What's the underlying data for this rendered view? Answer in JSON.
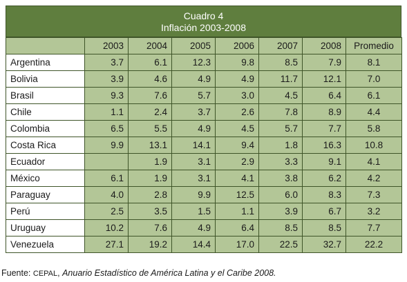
{
  "title": {
    "line1": "Cuadro 4",
    "line2": "Inflación 2003-2008"
  },
  "headers": [
    "2003",
    "2004",
    "2005",
    "2006",
    "2007",
    "2008",
    "Promedio"
  ],
  "rows": [
    {
      "country": "Argentina",
      "values": [
        "3.7",
        "6.1",
        "12.3",
        "9.8",
        "8.5",
        "7.9"
      ],
      "avg": "8.1"
    },
    {
      "country": "Bolivia",
      "values": [
        "3.9",
        "4.6",
        "4.9",
        "4.9",
        "11.7",
        "12.1"
      ],
      "avg": "7.0"
    },
    {
      "country": "Brasil",
      "values": [
        "9.3",
        "7.6",
        "5.7",
        "3.0",
        "4.5",
        "6.4"
      ],
      "avg": "6.1"
    },
    {
      "country": "Chile",
      "values": [
        "1.1",
        "2.4",
        "3.7",
        "2.6",
        "7.8",
        "8.9"
      ],
      "avg": "4.4"
    },
    {
      "country": "Colombia",
      "values": [
        "6.5",
        "5.5",
        "4.9",
        "4.5",
        "5.7",
        "7.7"
      ],
      "avg": "5.8"
    },
    {
      "country": "Costa Rica",
      "values": [
        "9.9",
        "13.1",
        "14.1",
        "9.4",
        "1.8",
        "16.3"
      ],
      "avg": "10.8"
    },
    {
      "country": "Ecuador",
      "values": [
        "",
        "1.9",
        "3.1",
        "2.9",
        "3.3",
        "9.1"
      ],
      "avg": "4.1"
    },
    {
      "country": "México",
      "values": [
        "6.1",
        "1.9",
        "3.1",
        "4.1",
        "3.8",
        "6.2"
      ],
      "avg": "4.2"
    },
    {
      "country": "Paraguay",
      "values": [
        "4.0",
        "2.8",
        "9.9",
        "12.5",
        "6.0",
        "8.3"
      ],
      "avg": "7.3"
    },
    {
      "country": "Perú",
      "values": [
        "2.5",
        "3.5",
        "1.5",
        "1.1",
        "3.9",
        "6.7"
      ],
      "avg": "3.2"
    },
    {
      "country": "Uruguay",
      "values": [
        "10.2",
        "7.6",
        "4.9",
        "6.4",
        "8.5",
        "8.5"
      ],
      "avg": "7.7"
    },
    {
      "country": "Venezuela",
      "values": [
        "27.1",
        "19.2",
        "14.4",
        "17.0",
        "22.5",
        "32.7"
      ],
      "avg": "22.2"
    }
  ],
  "source": {
    "prefix": "Fuente: ",
    "org": "CEPAL",
    "sep": ", ",
    "publication": "Anuario Estadístico de América Latina y el Caribe 2008."
  },
  "colors": {
    "header_green": "#5f7e3e",
    "cell_green": "#b3c697",
    "border": "#3e5428"
  }
}
